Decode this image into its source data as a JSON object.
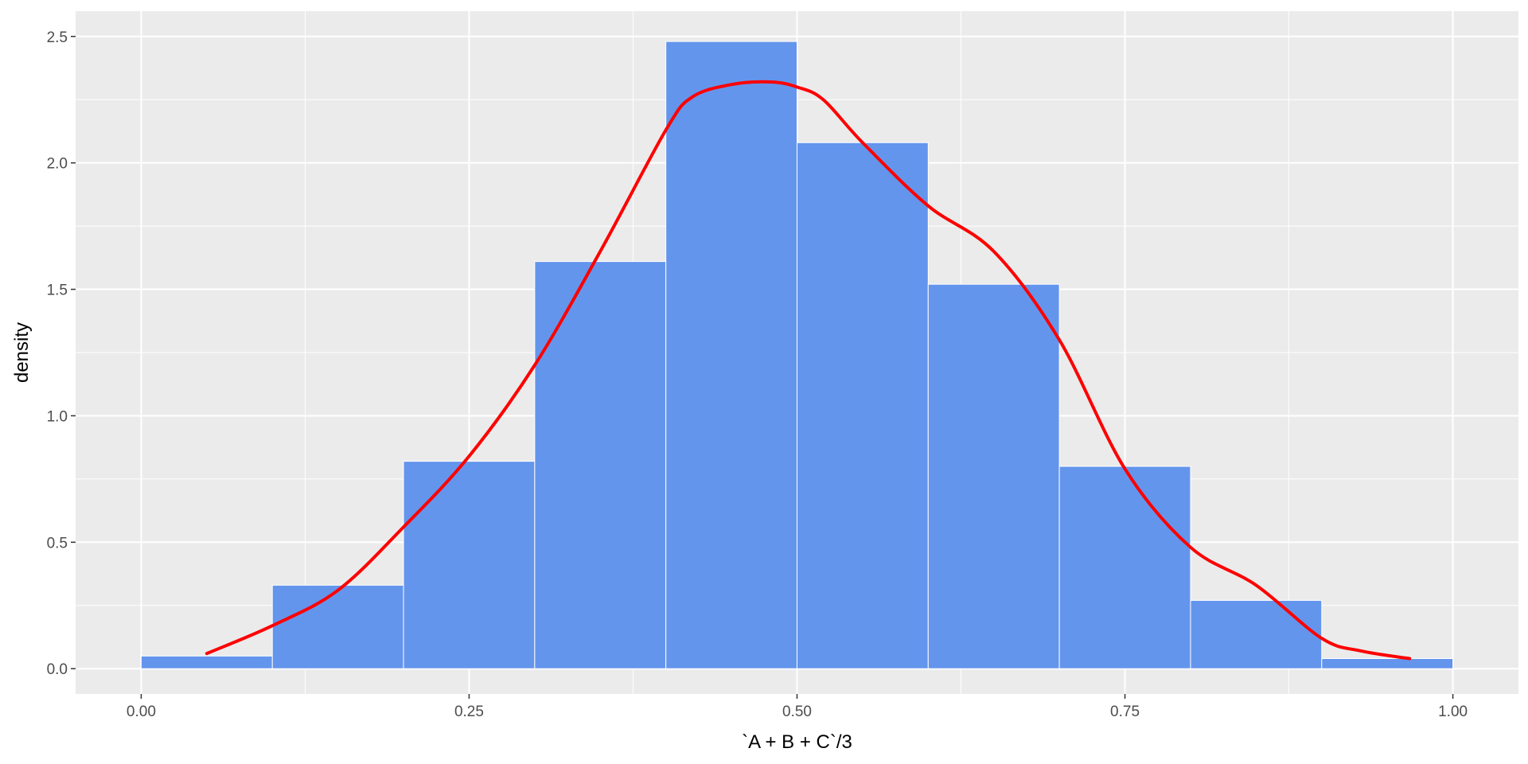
{
  "chart_data": {
    "type": "bar",
    "subtype": "histogram-with-density",
    "title": "",
    "xlabel": "`A + B + C`/3",
    "ylabel": "density",
    "xlim": [
      -0.05,
      1.05
    ],
    "ylim": [
      -0.1,
      2.6
    ],
    "x_ticks": [
      0.0,
      0.25,
      0.5,
      0.75,
      1.0
    ],
    "x_tick_labels": [
      "0.00",
      "0.25",
      "0.50",
      "0.75",
      "1.00"
    ],
    "y_ticks": [
      0.0,
      0.5,
      1.0,
      1.5,
      2.0,
      2.5
    ],
    "y_tick_labels": [
      "0.0",
      "0.5",
      "1.0",
      "1.5",
      "2.0",
      "2.5"
    ],
    "grid": true,
    "bins": [
      {
        "x0": 0.0,
        "x1": 0.1,
        "density": 0.05
      },
      {
        "x0": 0.1,
        "x1": 0.2,
        "density": 0.33
      },
      {
        "x0": 0.2,
        "x1": 0.3,
        "density": 0.82
      },
      {
        "x0": 0.3,
        "x1": 0.4,
        "density": 1.61
      },
      {
        "x0": 0.4,
        "x1": 0.5,
        "density": 2.48
      },
      {
        "x0": 0.5,
        "x1": 0.6,
        "density": 2.08
      },
      {
        "x0": 0.6,
        "x1": 0.7,
        "density": 1.52
      },
      {
        "x0": 0.7,
        "x1": 0.8,
        "density": 0.8
      },
      {
        "x0": 0.8,
        "x1": 0.9,
        "density": 0.27
      },
      {
        "x0": 0.9,
        "x1": 1.0,
        "density": 0.04
      }
    ],
    "density_curve": {
      "x": [
        0.05,
        0.1,
        0.15,
        0.2,
        0.25,
        0.3,
        0.35,
        0.4,
        0.42,
        0.45,
        0.48,
        0.5,
        0.52,
        0.55,
        0.6,
        0.65,
        0.7,
        0.75,
        0.8,
        0.85,
        0.9,
        0.93,
        0.967
      ],
      "y": [
        0.06,
        0.17,
        0.31,
        0.56,
        0.84,
        1.2,
        1.65,
        2.13,
        2.26,
        2.31,
        2.32,
        2.3,
        2.25,
        2.08,
        1.83,
        1.65,
        1.3,
        0.79,
        0.48,
        0.33,
        0.12,
        0.07,
        0.04
      ]
    },
    "colors": {
      "bar_fill": "#6495ED",
      "bar_outline": "#ffffff",
      "curve": "#FF0000",
      "panel_background": "#EBEBEB",
      "grid": "#ffffff",
      "tick_text": "#4d4d4d",
      "axis_title": "#000000"
    }
  }
}
